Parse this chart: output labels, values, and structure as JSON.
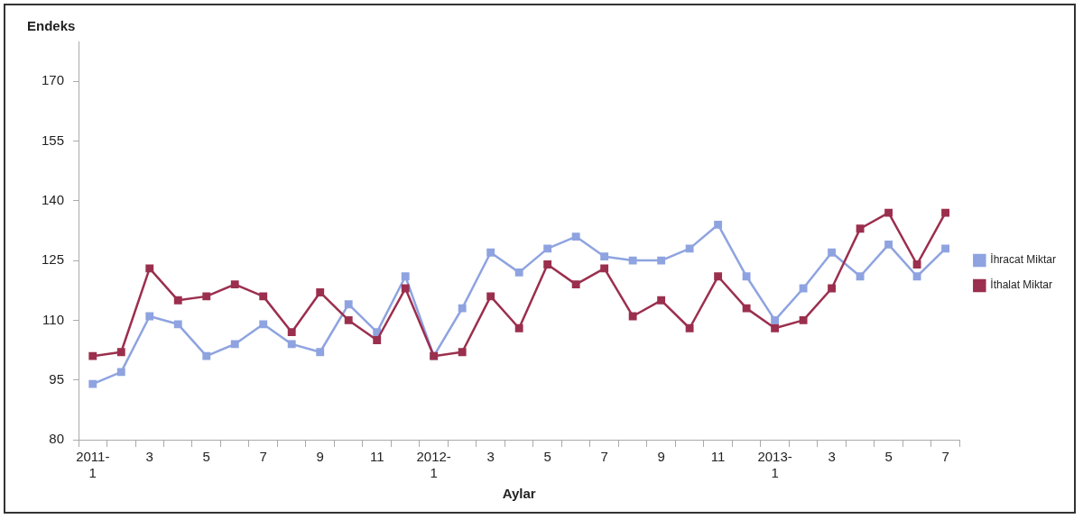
{
  "chart_data": {
    "type": "line",
    "xlabel": "Aylar",
    "ylabel": "Endeks",
    "categories": [
      "2011-1",
      null,
      "3",
      null,
      "5",
      null,
      "7",
      null,
      "9",
      null,
      "11",
      null,
      "2012-1",
      null,
      "3",
      null,
      "5",
      null,
      "7",
      null,
      "9",
      null,
      "11",
      null,
      "2013-1",
      null,
      "3",
      null,
      "5",
      null,
      "7"
    ],
    "series": [
      {
        "name": "İhracat Miktar",
        "color": "#8ea3e0",
        "values": [
          94,
          97,
          111,
          109,
          101,
          104,
          109,
          104,
          102,
          114,
          107,
          121,
          101,
          113,
          127,
          122,
          128,
          131,
          126,
          125,
          125,
          128,
          134,
          121,
          110,
          118,
          127,
          121,
          129,
          121,
          128
        ]
      },
      {
        "name": "İthalat Miktar",
        "color": "#9b2f4e",
        "values": [
          101,
          102,
          123,
          115,
          116,
          119,
          116,
          107,
          117,
          110,
          105,
          118,
          101,
          102,
          116,
          108,
          124,
          119,
          123,
          111,
          115,
          108,
          121,
          113,
          108,
          110,
          118,
          133,
          137,
          124,
          137
        ]
      }
    ],
    "ylim": [
      80,
      180
    ],
    "yticks": [
      80,
      95,
      110,
      125,
      140,
      155,
      170
    ],
    "grid": false,
    "legend": "right",
    "marker": "square",
    "line_style": "solid"
  }
}
